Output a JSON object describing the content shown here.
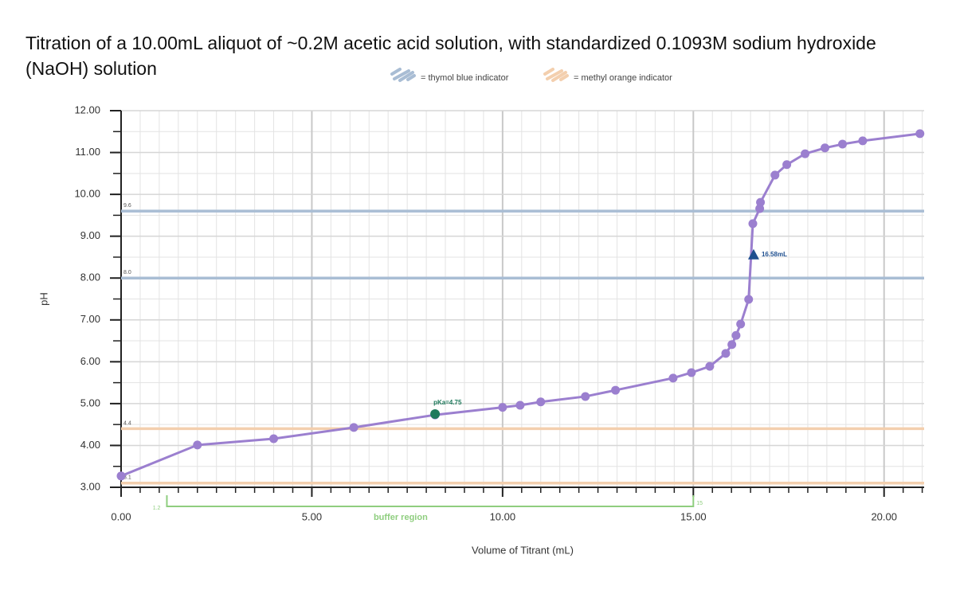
{
  "chart_data": {
    "type": "line",
    "title": "Titration of a 10.00mL aliquot of ~0.2M acetic acid solution, with standardized 0.1093M sodium hydroxide (NaOH) solution",
    "x_label": "Volume of Titrant (mL)",
    "y_label": "pH",
    "series": [
      {
        "name": "pH",
        "color": "#9b7fcf",
        "x": [
          0,
          2,
          4,
          6.1,
          8.23,
          10,
          10.46,
          11,
          12.17,
          12.96,
          14.47,
          14.95,
          15.43,
          15.85,
          16.01,
          16.12,
          16.24,
          16.45,
          16.56,
          16.74,
          16.76,
          17.14,
          17.45,
          17.93,
          18.45,
          18.91,
          19.44,
          20.94
        ],
        "values": [
          3.27,
          4.01,
          4.16,
          4.43,
          4.73,
          4.91,
          4.96,
          5.04,
          5.17,
          5.32,
          5.61,
          5.74,
          5.89,
          6.2,
          6.41,
          6.63,
          6.9,
          7.49,
          9.3,
          9.66,
          9.81,
          10.46,
          10.71,
          10.97,
          11.11,
          11.2,
          11.28,
          11.45
        ]
      }
    ],
    "xlim": [
      0,
      21.05
    ],
    "ylim": [
      3,
      12
    ],
    "x_minor_step": 0.5,
    "y_minor_step": 0.5,
    "grid": true,
    "xticks": [
      {
        "value": 0,
        "label": "0.00"
      },
      {
        "value": 5,
        "label": "5.00"
      },
      {
        "value": 10,
        "label": "10.00"
      },
      {
        "value": 15,
        "label": "15.00"
      },
      {
        "value": 20,
        "label": "20.00"
      }
    ],
    "yticks": [
      {
        "value": 3,
        "label": "3.00"
      },
      {
        "value": 4,
        "label": "4.00"
      },
      {
        "value": 5,
        "label": "5.00"
      },
      {
        "value": 6,
        "label": "6.00"
      },
      {
        "value": 7,
        "label": "7.00"
      },
      {
        "value": 8,
        "label": "8.00"
      },
      {
        "value": 9,
        "label": "9.00"
      },
      {
        "value": 10,
        "label": "10.00"
      },
      {
        "value": 11,
        "label": "11.00"
      },
      {
        "value": 12,
        "label": "12.00"
      }
    ],
    "hlines": [
      {
        "value": 9.6,
        "label": "9.6",
        "color": "#a9bdd4"
      },
      {
        "value": 8.0,
        "label": "8.0",
        "color": "#a9bdd4"
      },
      {
        "value": 4.4,
        "label": "4.4",
        "color": "#f3cfae"
      },
      {
        "value": 3.1,
        "label": "3.1",
        "color": "#f3cfae"
      }
    ],
    "legend": [
      {
        "name": "= thymol blue indicator",
        "color": "#a9bdd4"
      },
      {
        "name": "= methyl orange indicator",
        "color": "#f3cfae"
      }
    ],
    "annotations": [
      {
        "text": "pKa=4.75",
        "x": 8.23,
        "y": 4.75,
        "color": "#1f7a5c",
        "marker": "circle"
      },
      {
        "text": "16.58mL",
        "x": 16.58,
        "y": 8.56,
        "color": "#1f4f8f",
        "marker": "triangle"
      }
    ],
    "region": {
      "label": "buffer region",
      "start": 1.2,
      "end": 15,
      "start_label": "1.2",
      "end_label": "15",
      "color": "#8fce7f"
    }
  }
}
